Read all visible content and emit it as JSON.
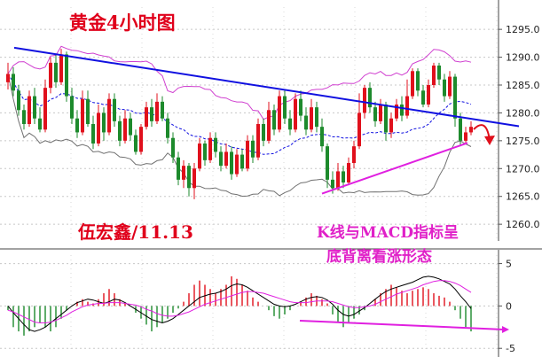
{
  "title": "黄金4小时图",
  "author_label": "伍宏鑫/11.13",
  "annotation_line1": "K线与MACD指标呈",
  "annotation_line2": "底背离看涨形态",
  "colors": {
    "bull": "#e0101c",
    "bear": "#1d8a2c",
    "trendline": "#1010e0",
    "support": "#e020e0",
    "boll_mid": "#1010e0",
    "boll_upper": "#d040d0",
    "boll_lower": "#707070",
    "text_red": "#e0001b",
    "text_magenta": "#e020c8",
    "grid": "#c8c8c8"
  },
  "chart_data": [
    {
      "type": "candlestick",
      "title": "黄金4小时图",
      "ylim": [
        1257,
        1299
      ],
      "yticks": [
        "1295.0",
        "1290.0",
        "1285.0",
        "1280.0",
        "1275.0",
        "1270.0",
        "1265.0",
        "1260.0"
      ],
      "grid": true,
      "candles": [
        [
          1285.5,
          1287.0,
          1284.2,
          1289.0
        ],
        [
          1287.0,
          1284.0,
          1283.0,
          1288.2
        ],
        [
          1284.0,
          1280.5,
          1279.5,
          1285.0
        ],
        [
          1280.5,
          1278.0,
          1277.0,
          1281.5
        ],
        [
          1278.0,
          1283.0,
          1277.5,
          1284.0
        ],
        [
          1283.0,
          1279.0,
          1278.0,
          1284.5
        ],
        [
          1279.0,
          1277.0,
          1276.5,
          1281.0
        ],
        [
          1277.0,
          1284.5,
          1276.5,
          1286.0
        ],
        [
          1284.5,
          1289.0,
          1283.5,
          1290.0
        ],
        [
          1289.0,
          1285.5,
          1284.5,
          1290.5
        ],
        [
          1285.5,
          1290.5,
          1285.0,
          1291.5
        ],
        [
          1290.5,
          1283.0,
          1282.0,
          1291.0
        ],
        [
          1283.0,
          1279.0,
          1278.0,
          1284.5
        ],
        [
          1279.0,
          1276.5,
          1275.5,
          1280.5
        ],
        [
          1276.5,
          1282.5,
          1276.0,
          1284.0
        ],
        [
          1282.5,
          1278.0,
          1277.5,
          1284.0
        ],
        [
          1278.0,
          1274.5,
          1273.5,
          1279.5
        ],
        [
          1274.5,
          1280.0,
          1274.0,
          1281.5
        ],
        [
          1280.0,
          1276.5,
          1275.0,
          1281.0
        ],
        [
          1276.5,
          1282.5,
          1276.0,
          1283.5
        ],
        [
          1282.5,
          1278.5,
          1277.5,
          1283.5
        ],
        [
          1278.5,
          1275.0,
          1274.0,
          1279.5
        ],
        [
          1275.0,
          1279.0,
          1274.5,
          1280.5
        ],
        [
          1279.0,
          1276.0,
          1275.0,
          1280.0
        ],
        [
          1276.0,
          1273.0,
          1272.5,
          1277.0
        ],
        [
          1273.0,
          1277.5,
          1272.5,
          1278.0
        ],
        [
          1277.5,
          1281.0,
          1277.0,
          1282.0
        ],
        [
          1281.0,
          1278.5,
          1277.5,
          1282.5
        ],
        [
          1278.5,
          1282.0,
          1278.0,
          1283.5
        ],
        [
          1282.0,
          1279.0,
          1278.5,
          1283.0
        ],
        [
          1279.0,
          1275.5,
          1274.5,
          1280.0
        ],
        [
          1275.5,
          1272.0,
          1271.0,
          1276.5
        ],
        [
          1272.0,
          1268.0,
          1267.0,
          1273.0
        ],
        [
          1268.0,
          1270.5,
          1266.5,
          1271.5
        ],
        [
          1270.5,
          1266.5,
          1265.0,
          1271.0
        ],
        [
          1266.5,
          1270.0,
          1264.5,
          1271.0
        ],
        [
          1270.0,
          1274.5,
          1269.5,
          1275.5
        ],
        [
          1274.5,
          1271.5,
          1270.5,
          1275.0
        ],
        [
          1271.5,
          1275.5,
          1271.0,
          1276.5
        ],
        [
          1275.5,
          1273.0,
          1272.0,
          1276.5
        ],
        [
          1273.0,
          1270.5,
          1269.5,
          1274.0
        ],
        [
          1270.5,
          1273.0,
          1270.0,
          1274.5
        ],
        [
          1273.0,
          1269.0,
          1268.0,
          1274.0
        ],
        [
          1269.0,
          1272.5,
          1268.5,
          1273.5
        ],
        [
          1272.5,
          1270.0,
          1269.5,
          1273.5
        ],
        [
          1270.0,
          1275.0,
          1269.5,
          1276.0
        ],
        [
          1275.0,
          1272.0,
          1271.0,
          1276.0
        ],
        [
          1272.0,
          1278.0,
          1271.5,
          1279.0
        ],
        [
          1278.0,
          1275.0,
          1274.0,
          1279.0
        ],
        [
          1275.0,
          1280.5,
          1274.5,
          1282.0
        ],
        [
          1280.5,
          1277.0,
          1276.0,
          1281.5
        ],
        [
          1277.0,
          1283.0,
          1276.5,
          1284.0
        ],
        [
          1283.0,
          1279.0,
          1278.0,
          1284.0
        ],
        [
          1279.0,
          1277.0,
          1276.0,
          1280.5
        ],
        [
          1277.0,
          1282.5,
          1276.5,
          1283.5
        ],
        [
          1282.5,
          1279.5,
          1278.5,
          1284.0
        ],
        [
          1279.5,
          1277.0,
          1276.0,
          1281.0
        ],
        [
          1277.0,
          1281.0,
          1276.5,
          1282.5
        ],
        [
          1281.0,
          1277.5,
          1276.5,
          1282.0
        ],
        [
          1277.5,
          1274.0,
          1273.0,
          1279.0
        ],
        [
          1274.0,
          1268.0,
          1266.5,
          1274.5
        ],
        [
          1268.0,
          1266.5,
          1265.5,
          1269.5
        ],
        [
          1266.5,
          1269.5,
          1266.0,
          1271.0
        ],
        [
          1269.5,
          1267.5,
          1266.5,
          1270.5
        ],
        [
          1267.5,
          1271.0,
          1267.0,
          1272.0
        ],
        [
          1271.0,
          1274.0,
          1270.0,
          1275.0
        ],
        [
          1274.0,
          1280.0,
          1273.5,
          1283.5
        ],
        [
          1280.0,
          1284.5,
          1279.0,
          1285.0
        ],
        [
          1284.5,
          1281.0,
          1280.0,
          1285.5
        ],
        [
          1281.0,
          1278.5,
          1277.5,
          1282.0
        ],
        [
          1278.5,
          1281.5,
          1278.0,
          1282.5
        ],
        [
          1281.5,
          1276.5,
          1275.0,
          1282.0
        ],
        [
          1276.5,
          1279.0,
          1275.5,
          1280.0
        ],
        [
          1279.0,
          1281.5,
          1278.5,
          1282.5
        ],
        [
          1281.5,
          1279.5,
          1278.5,
          1283.0
        ],
        [
          1279.5,
          1283.0,
          1279.0,
          1286.0
        ],
        [
          1283.0,
          1287.5,
          1282.5,
          1288.0
        ],
        [
          1287.5,
          1284.0,
          1283.0,
          1288.0
        ],
        [
          1284.0,
          1281.5,
          1281.0,
          1285.0
        ],
        [
          1281.5,
          1285.0,
          1281.0,
          1286.0
        ],
        [
          1285.0,
          1288.5,
          1284.5,
          1289.0
        ],
        [
          1288.5,
          1286.0,
          1285.0,
          1289.0
        ],
        [
          1286.0,
          1283.0,
          1282.0,
          1287.0
        ],
        [
          1283.0,
          1286.5,
          1282.5,
          1287.5
        ],
        [
          1286.5,
          1279.0,
          1277.5,
          1287.0
        ],
        [
          1279.0,
          1275.0,
          1274.0,
          1280.0
        ],
        [
          1275.0,
          1276.5,
          1274.5,
          1277.5
        ],
        [
          1276.5,
          1277.5,
          1276.0,
          1278.5
        ]
      ],
      "trendline_resistance": [
        [
          0,
          1291.7
        ],
        [
          88,
          1279.0
        ]
      ],
      "trendline_support": [
        [
          61,
          1265.5
        ],
        [
          86,
          1274.6
        ]
      ]
    },
    {
      "type": "bar",
      "name": "MACD",
      "ylim": [
        -5.5,
        6
      ],
      "yticks": [
        "5",
        "0",
        "-5"
      ],
      "histogram": [
        -0.5,
        -2.5,
        -3,
        -3.5,
        -3,
        -2.5,
        -2,
        -2.5,
        -3,
        -2.5,
        -1.5,
        -0.5,
        0,
        0.5,
        0.8,
        0.5,
        0.3,
        0.8,
        1.5,
        2,
        1.5,
        0.8,
        0.3,
        0,
        -0.8,
        -1.5,
        -2.2,
        -3,
        -2.5,
        -2,
        -1.5,
        -0.8,
        -0.3,
        0.5,
        1.5,
        2.5,
        3,
        2.5,
        2,
        1.5,
        2,
        2.5,
        3.5,
        3.2,
        2.5,
        1.8,
        1,
        0.5,
        0,
        -0.5,
        -1.2,
        -1.5,
        -1,
        -0.5,
        0,
        0.5,
        1,
        1.5,
        1.2,
        0.8,
        0.3,
        -1,
        -2,
        -2.5,
        -2,
        -1.5,
        -1,
        -0.5,
        0,
        0.8,
        1.5,
        2,
        2.5,
        2.2,
        1.8,
        1.5,
        1.8,
        2,
        2.2,
        2,
        1.5,
        1.2,
        1,
        0.5,
        -0.5,
        -1.5,
        -2.5,
        -3
      ],
      "dif": [
        0,
        -0.8,
        -1.5,
        -2.2,
        -2.8,
        -3,
        -2.8,
        -2.5,
        -2,
        -1.5,
        -1,
        -0.5,
        0,
        0.4,
        0.6,
        0.8,
        0.7,
        0.5,
        0.3,
        0.5,
        0.8,
        0.7,
        0.4,
        0,
        -0.4,
        -0.8,
        -1.2,
        -1.6,
        -1.8,
        -2,
        -1.8,
        -1.5,
        -1,
        -0.5,
        0,
        0.5,
        1,
        1.2,
        1.4,
        1.5,
        1.7,
        2,
        2.4,
        2.6,
        2.5,
        2.2,
        1.8,
        1.4,
        1,
        0.6,
        0.2,
        0,
        -0.1,
        0,
        0.2,
        0.5,
        0.8,
        1,
        1.1,
        1,
        0.7,
        0.2,
        -0.5,
        -1,
        -1.2,
        -1,
        -0.6,
        -0.2,
        0.3,
        0.8,
        1.3,
        1.7,
        2,
        2.2,
        2.4,
        2.6,
        2.8,
        3.1,
        3.4,
        3.5,
        3.4,
        3.2,
        2.9,
        2.6,
        2,
        1.2,
        0.5,
        -0.3
      ],
      "dea": [
        -0.5,
        -0.7,
        -1,
        -1.3,
        -1.6,
        -1.9,
        -2,
        -2,
        -1.9,
        -1.7,
        -1.4,
        -1.1,
        -0.7,
        -0.4,
        -0.1,
        0.1,
        0.2,
        0.3,
        0.3,
        0.4,
        0.4,
        0.4,
        0.3,
        0.2,
        0.1,
        -0.1,
        -0.4,
        -0.6,
        -0.9,
        -1.1,
        -1.2,
        -1.2,
        -1.1,
        -0.9,
        -0.7,
        -0.4,
        -0.1,
        0.2,
        0.4,
        0.6,
        0.8,
        1,
        1.2,
        1.4,
        1.6,
        1.7,
        1.7,
        1.6,
        1.5,
        1.3,
        1.1,
        0.9,
        0.7,
        0.5,
        0.4,
        0.4,
        0.4,
        0.5,
        0.6,
        0.6,
        0.6,
        0.5,
        0.3,
        0.1,
        -0.1,
        -0.2,
        -0.2,
        -0.1,
        0,
        0.2,
        0.5,
        0.8,
        1.1,
        1.4,
        1.6,
        1.8,
        2,
        2.2,
        2.5,
        2.7,
        2.9,
        3,
        3,
        2.9,
        2.7,
        2.4,
        2,
        1.6
      ],
      "trendline": [
        [
          61,
          -1.5
        ],
        [
          101,
          -2.6
        ]
      ]
    }
  ]
}
